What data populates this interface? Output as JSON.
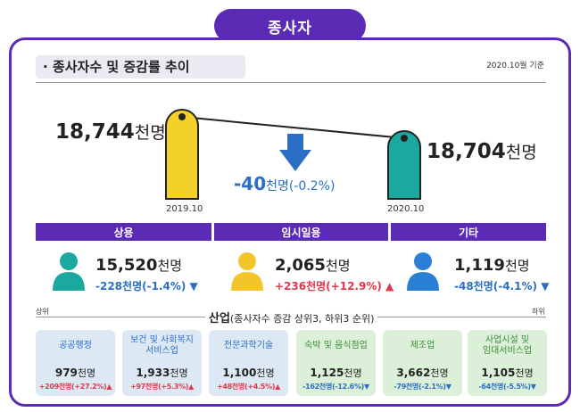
{
  "title": "종사자",
  "section": {
    "header": "· 종사자수 및 증감률 추이",
    "date_note": "2020.10월 기준"
  },
  "trend": {
    "left": {
      "value": "18,744",
      "unit": "천명",
      "year": "2019.10"
    },
    "right": {
      "value": "18,704",
      "unit": "천명",
      "year": "2020.10"
    },
    "delta_value": "-40",
    "delta_unit": "천명",
    "delta_pct": "(-0.2%)"
  },
  "categories": [
    {
      "label": "상용",
      "value": "15,520",
      "unit": "천명",
      "delta": "-228천명(-1.4%)",
      "direction": "down",
      "icon": "person-teal-icon"
    },
    {
      "label": "임시일용",
      "value": "2,065",
      "unit": "천명",
      "delta": "+236천명(+12.9%)",
      "direction": "up",
      "icon": "person-yellow-icon"
    },
    {
      "label": "기타",
      "value": "1,119",
      "unit": "천명",
      "delta": "-48천명(-4.1%)",
      "direction": "down",
      "icon": "person-blue-icon"
    }
  ],
  "industry": {
    "title": "산업",
    "subtitle": "(종사자수 증감 상위3, 하위3 순위)",
    "top_label": "상위",
    "bottom_label": "하위",
    "cards": [
      {
        "name_lines": [
          "공공행정"
        ],
        "value": "979",
        "unit": "천명",
        "delta": "+209천명(+27.2%)",
        "direction": "up",
        "group": "top"
      },
      {
        "name_lines": [
          "보건 및 사회복지",
          "서비스업"
        ],
        "value": "1,933",
        "unit": "천명",
        "delta": "+97천명(+5.3%)",
        "direction": "up",
        "group": "top"
      },
      {
        "name_lines": [
          "전문과학기술"
        ],
        "value": "1,100",
        "unit": "천명",
        "delta": "+48천명(+4.5%)",
        "direction": "up",
        "group": "top"
      },
      {
        "name_lines": [
          "숙박 및 음식점업"
        ],
        "value": "1,125",
        "unit": "천명",
        "delta": "-162천명(-12.6%)",
        "direction": "down",
        "group": "bottom"
      },
      {
        "name_lines": [
          "제조업"
        ],
        "value": "3,662",
        "unit": "천명",
        "delta": "-79천명(-2.1%)",
        "direction": "down",
        "group": "bottom"
      },
      {
        "name_lines": [
          "사업시설 및",
          "임대서비스업"
        ],
        "value": "1,105",
        "unit": "천명",
        "delta": "-64천명(-5.5%)",
        "direction": "down",
        "group": "bottom"
      }
    ]
  },
  "colors": {
    "purple": "#5b2bb5",
    "blue": "#2b6fc5",
    "red": "#e3374b",
    "teal": "#1aa89f",
    "yellow": "#f4d02b",
    "green": "#3a8d36"
  }
}
